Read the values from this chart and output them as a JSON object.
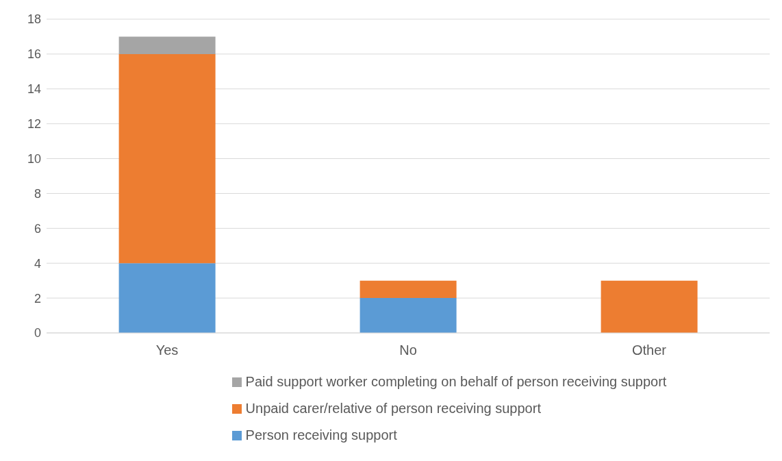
{
  "chart_data": {
    "type": "bar",
    "stacked": true,
    "categories": [
      "Yes",
      "No",
      "Other"
    ],
    "series": [
      {
        "name": "Person receiving support",
        "color": "#5b9bd5",
        "values": [
          4,
          2,
          0
        ]
      },
      {
        "name": "Unpaid carer/relative of person receiving support",
        "color": "#ed7d31",
        "values": [
          12,
          1,
          3
        ]
      },
      {
        "name": "Paid support worker completing on behalf of person receiving support",
        "color": "#a5a5a5",
        "values": [
          1,
          0,
          0
        ]
      }
    ],
    "ylim": [
      0,
      18
    ],
    "yticks": [
      0,
      2,
      4,
      6,
      8,
      10,
      12,
      14,
      16,
      18
    ],
    "grid": "y",
    "legend": "bottom"
  }
}
